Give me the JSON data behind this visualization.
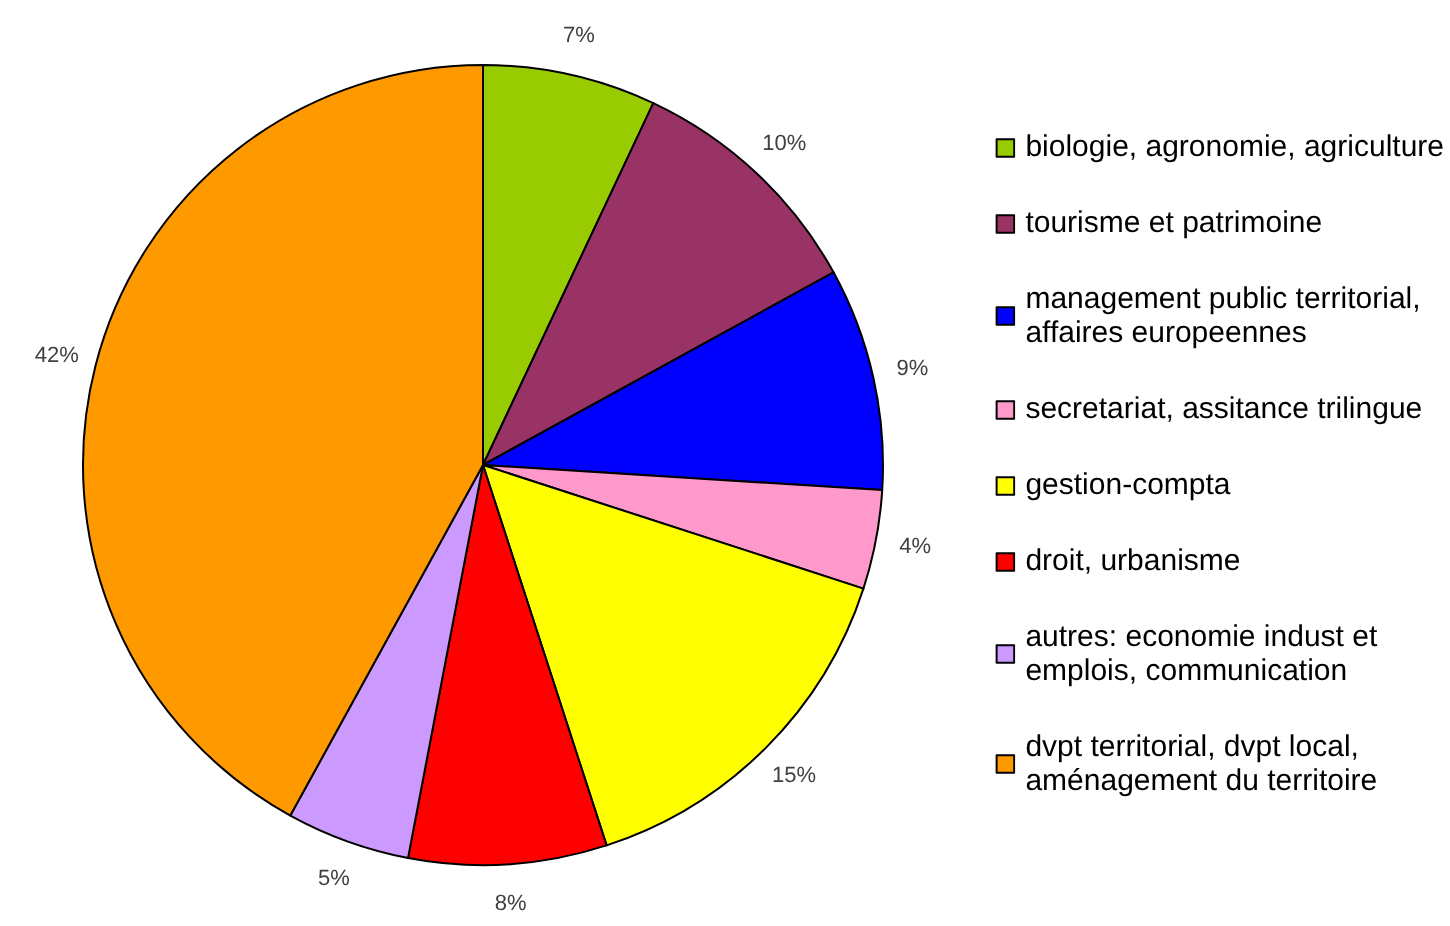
{
  "chart_data": {
    "type": "pie",
    "categories": [
      "biologie, agronomie, agriculture",
      "tourisme et patrimoine",
      "management public territorial, affaires europeennes",
      "secretariat, assitance trilingue",
      "gestion-compta",
      "droit, urbanisme",
      "autres: economie indust et emplois, communication",
      "dvpt territorial, dvpt local, aménagement du territoire"
    ],
    "values": [
      7,
      10,
      9,
      4,
      15,
      8,
      5,
      42
    ],
    "colors": [
      "#99cc00",
      "#993366",
      "#0000ff",
      "#ff99cc",
      "#ffff00",
      "#ff0000",
      "#cc99ff",
      "#ff9900"
    ],
    "value_labels": [
      "7%",
      "10%",
      "9%",
      "4%",
      "15%",
      "8%",
      "5%",
      "42%"
    ],
    "legend": "right"
  }
}
